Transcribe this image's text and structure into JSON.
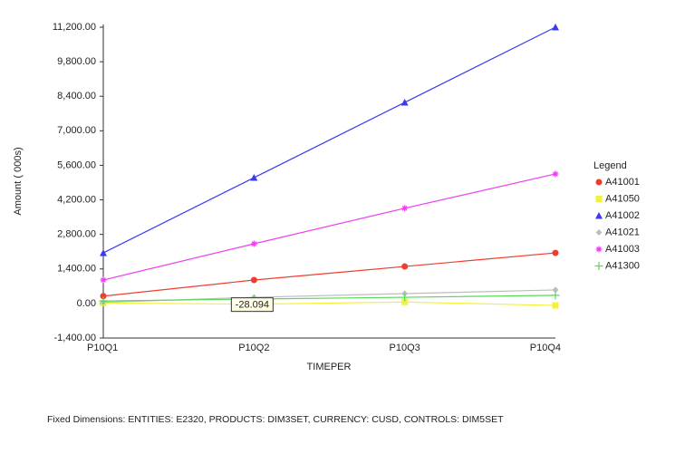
{
  "chart_data": {
    "type": "line",
    "x_label": "TIMEPER",
    "y_label": "Amount ( 000s)",
    "categories": [
      "P10Q1",
      "P10Q2",
      "P10Q3",
      "P10Q4"
    ],
    "ylim": [
      -1400,
      11200
    ],
    "yticks": [
      {
        "value": -1400,
        "label": "-1,400.00"
      },
      {
        "value": 0,
        "label": "0.00"
      },
      {
        "value": 1400,
        "label": "1,400.00"
      },
      {
        "value": 2800,
        "label": "2,800.00"
      },
      {
        "value": 4200,
        "label": "4,200.00"
      },
      {
        "value": 5600,
        "label": "5,600.00"
      },
      {
        "value": 7000,
        "label": "7,000.00"
      },
      {
        "value": 8400,
        "label": "8,400.00"
      },
      {
        "value": 9800,
        "label": "9,800.00"
      },
      {
        "value": 11200,
        "label": "11,200.00"
      }
    ],
    "legend_title": "Legend",
    "legend_position": "right",
    "series": [
      {
        "name": "A41001",
        "color": "#f03c2c",
        "marker": "circle",
        "values": [
          300,
          950,
          1500,
          2050
        ]
      },
      {
        "name": "A41050",
        "color": "#f2f23a",
        "marker": "square",
        "values": [
          20,
          -28.094,
          60,
          -80
        ]
      },
      {
        "name": "A41002",
        "color": "#3a3af0",
        "marker": "triangle",
        "values": [
          2050,
          5100,
          8150,
          11200
        ]
      },
      {
        "name": "A41021",
        "color": "#bdbdbd",
        "marker": "diamond",
        "values": [
          50,
          250,
          400,
          550
        ]
      },
      {
        "name": "A41003",
        "color": "#f03cf0",
        "marker": "asterisk",
        "values": [
          950,
          2420,
          3860,
          5250
        ]
      },
      {
        "name": "A41300",
        "color": "#5ad85a",
        "marker": "plus",
        "values": [
          100,
          180,
          250,
          330
        ]
      }
    ],
    "tooltip": {
      "series": 1,
      "index": 1
    },
    "footer": "Fixed Dimensions: ENTITIES: E2320, PRODUCTS: DIM3SET, CURRENCY: CUSD, CONTROLS: DIM5SET"
  }
}
